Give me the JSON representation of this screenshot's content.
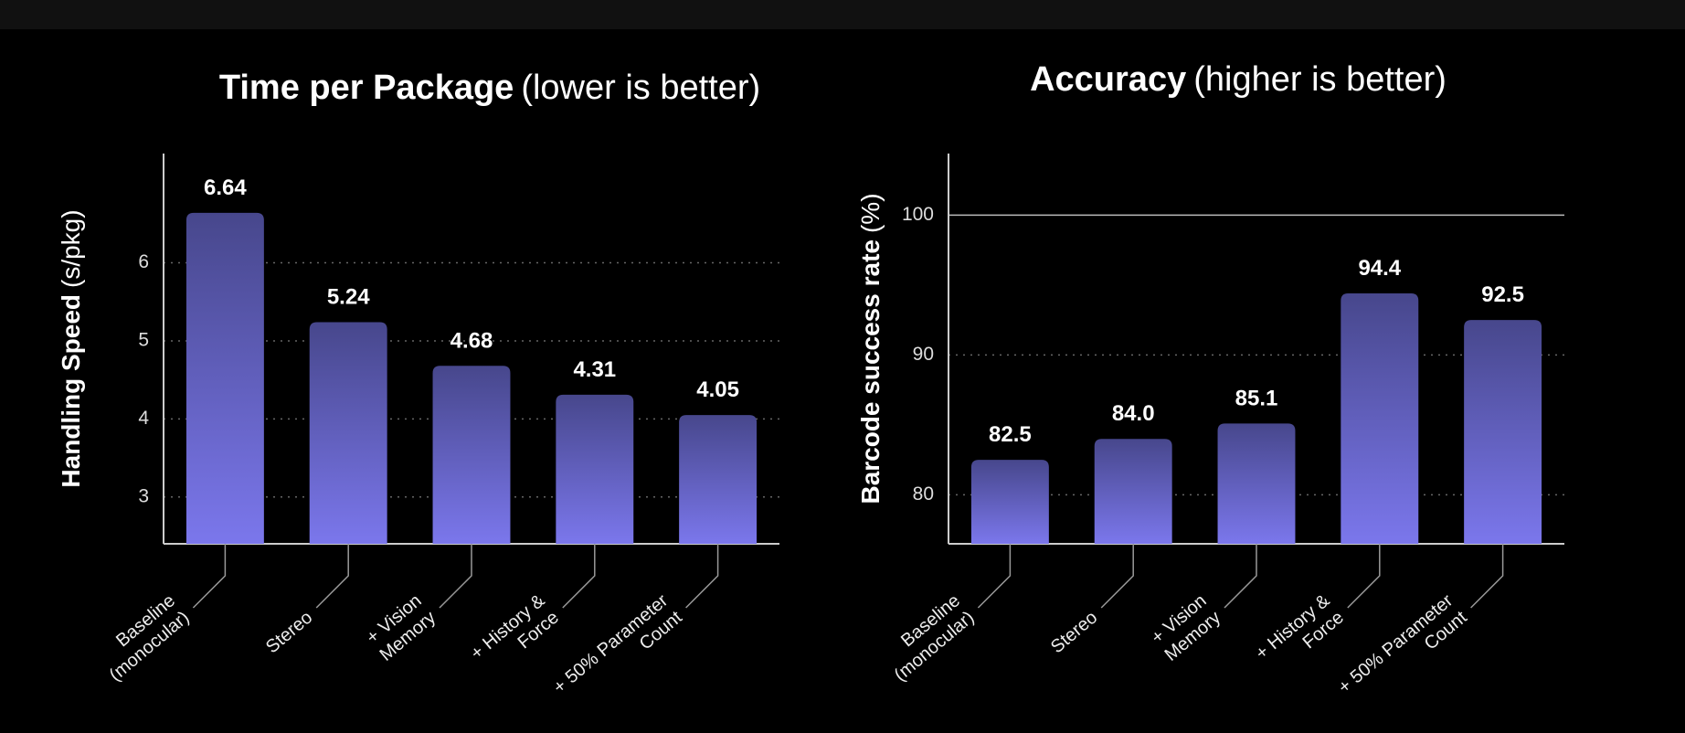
{
  "chart_data": [
    {
      "type": "bar",
      "title": "Time per Package",
      "title_note": "(lower is better)",
      "y_label": "Handling Speed",
      "y_unit": "(s/pkg)",
      "categories": [
        [
          "Baseline",
          "(monocular)"
        ],
        [
          "Stereo"
        ],
        [
          "+ Vision",
          "Memory"
        ],
        [
          "+ History &",
          "Force"
        ],
        [
          "+ 50% Parameter",
          "Count"
        ]
      ],
      "values": [
        6.64,
        5.24,
        4.68,
        4.31,
        4.05
      ],
      "gradient": [
        "#47478c",
        "#7b77ec"
      ],
      "ylim": [
        2.4,
        7.4
      ],
      "yticks": [
        3,
        4,
        5,
        6
      ],
      "grid": true
    },
    {
      "type": "bar",
      "title": "Accuracy",
      "title_note": "(higher is better)",
      "y_label": "Barcode success rate",
      "y_unit": "(%)",
      "categories": [
        [
          "Baseline",
          "(monocular)"
        ],
        [
          "Stereo"
        ],
        [
          "+ Vision",
          "Memory"
        ],
        [
          "+ History &",
          "Force"
        ],
        [
          "+ 50% Parameter",
          "Count"
        ]
      ],
      "values": [
        82.5,
        84,
        85.1,
        94.4,
        92.5
      ],
      "value_labels": [
        "82.5",
        "84.0",
        "85.1",
        "94.4",
        "92.5"
      ],
      "gradient": [
        "#47478c",
        "#7b77ec"
      ],
      "ylim": [
        76.5,
        104.4
      ],
      "yticks": [
        80,
        90,
        100
      ],
      "grid": true,
      "reference_line": 100
    }
  ]
}
